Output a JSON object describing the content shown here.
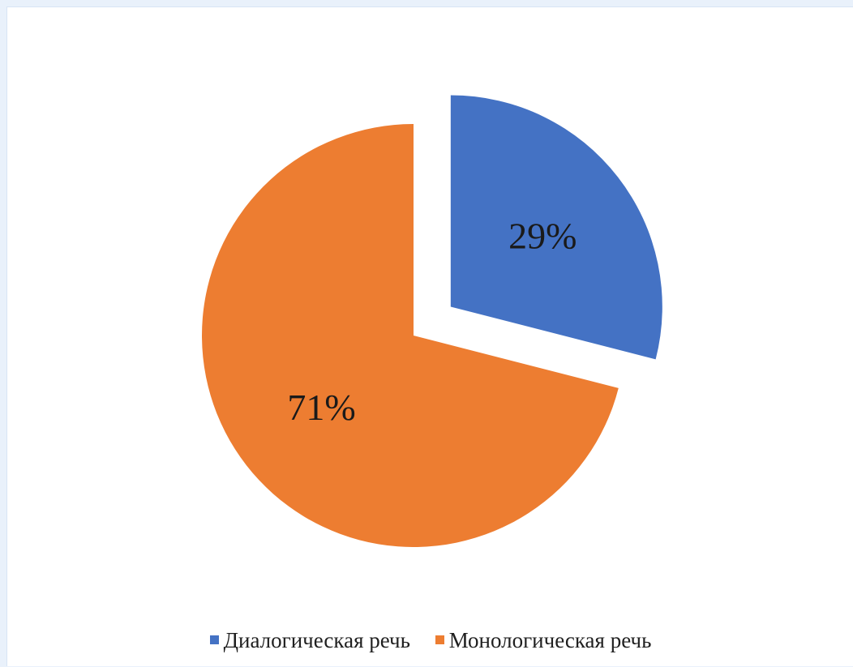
{
  "chart_data": {
    "type": "pie",
    "title": "",
    "labels": [
      "Диалогическая речь",
      "Монологическая речь"
    ],
    "values": [
      29,
      71
    ],
    "data_labels": [
      "29%",
      "71%"
    ],
    "colors": [
      "#4472C4",
      "#ED7D31"
    ],
    "exploded": [
      true,
      false
    ],
    "start_angle_deg": 0,
    "direction": "clockwise",
    "legend_position": "bottom",
    "grid": false
  }
}
